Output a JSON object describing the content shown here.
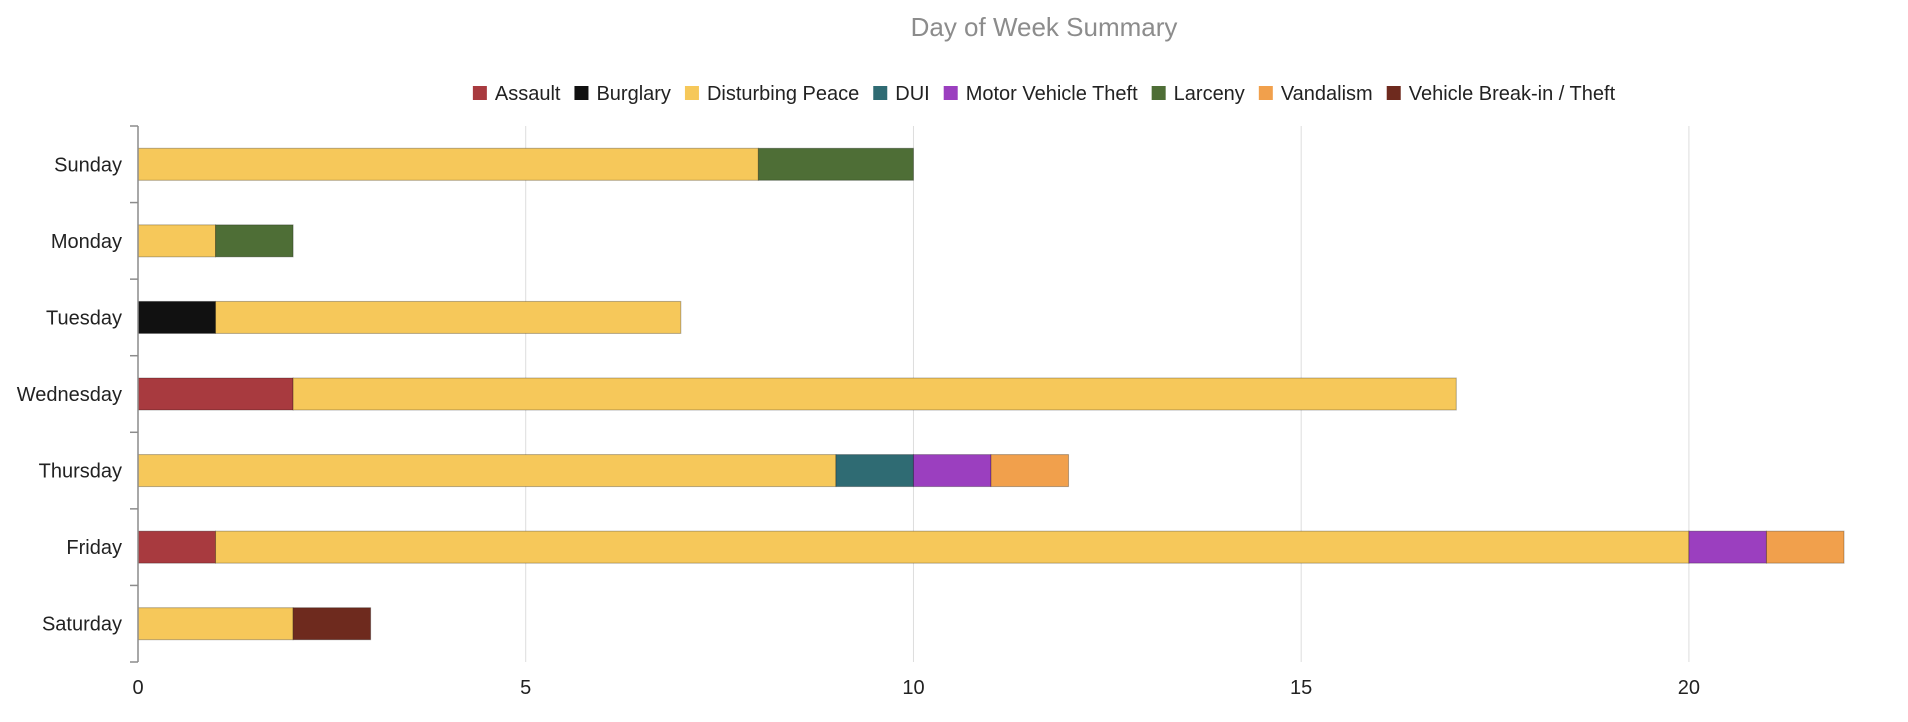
{
  "chart_data": {
    "type": "bar",
    "orientation": "horizontal",
    "stacked": true,
    "title": "Day of Week Summary",
    "xlabel": "",
    "ylabel": "",
    "xlim": [
      0,
      22
    ],
    "x_ticks": [
      0,
      5,
      10,
      15,
      20
    ],
    "grid": true,
    "legend_position": "top",
    "categories": [
      "Sunday",
      "Monday",
      "Tuesday",
      "Wednesday",
      "Thursday",
      "Friday",
      "Saturday"
    ],
    "series": [
      {
        "name": "Assault",
        "color": "#a83a3f",
        "values": [
          0,
          0,
          0,
          2,
          0,
          1,
          0
        ]
      },
      {
        "name": "Burglary",
        "color": "#111111",
        "values": [
          0,
          0,
          1,
          0,
          0,
          0,
          0
        ]
      },
      {
        "name": "Disturbing Peace",
        "color": "#f6c85a",
        "values": [
          8,
          1,
          6,
          15,
          9,
          19,
          2
        ]
      },
      {
        "name": "DUI",
        "color": "#2f6b73",
        "values": [
          0,
          0,
          0,
          0,
          1,
          0,
          0
        ]
      },
      {
        "name": "Motor Vehicle Theft",
        "color": "#9b3fbf",
        "values": [
          0,
          0,
          0,
          0,
          1,
          1,
          0
        ]
      },
      {
        "name": "Larceny",
        "color": "#4e6e36",
        "values": [
          2,
          1,
          0,
          0,
          0,
          0,
          0
        ]
      },
      {
        "name": "Vandalism",
        "color": "#f1a04c",
        "values": [
          0,
          0,
          0,
          0,
          1,
          1,
          0
        ]
      },
      {
        "name": "Vehicle Break-in / Theft",
        "color": "#6e2a1e",
        "values": [
          0,
          0,
          0,
          0,
          0,
          0,
          1
        ]
      }
    ]
  }
}
